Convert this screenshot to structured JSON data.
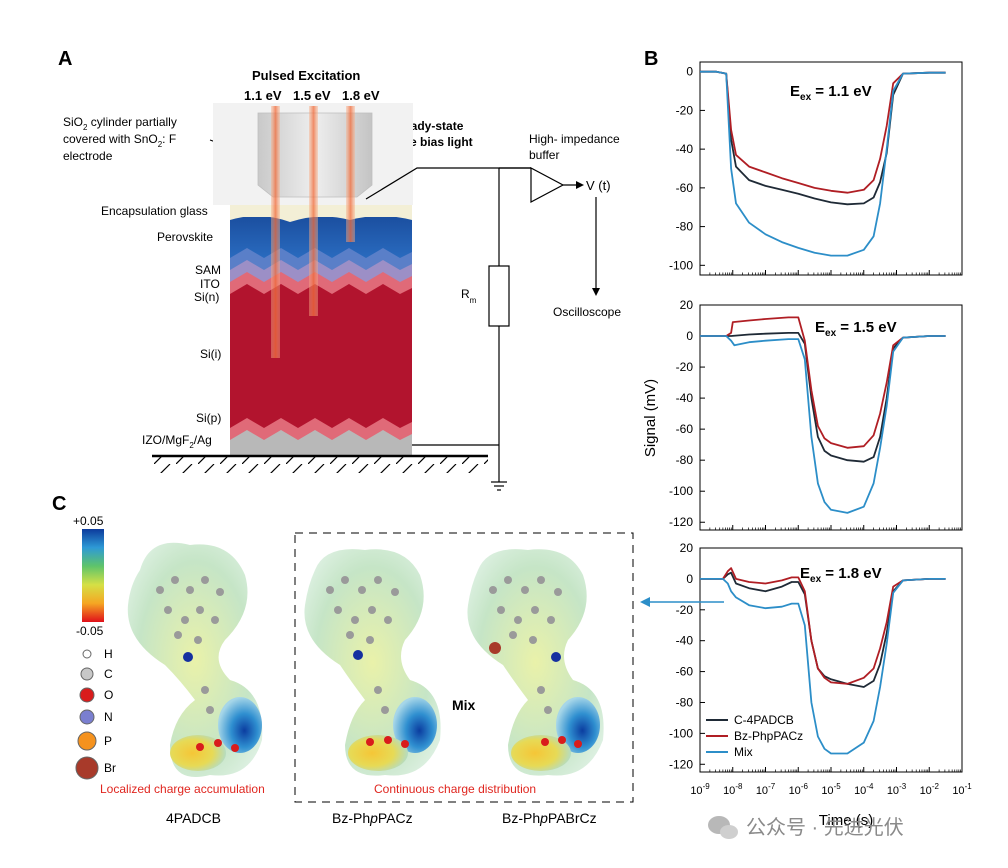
{
  "panels": {
    "a_label": "A",
    "b_label": "B",
    "c_label": "C"
  },
  "panel_a": {
    "pulsed_excitation": "Pulsed Excitation",
    "energies": [
      "1.1 eV",
      "1.5 eV",
      "1.8 eV"
    ],
    "cylinder_label_1": "SiO",
    "cylinder_label_1b": "2",
    "cylinder_label_1c": " cylinder partially",
    "cylinder_label_2": "covered with SnO",
    "cylinder_label_2b": "2",
    "cylinder_label_2c": ": F",
    "cylinder_label_3": "electrode",
    "bias_light_1": "Steady-state",
    "bias_light_2": "white bias light",
    "buffer_1": "High- impedance",
    "buffer_2": "buffer",
    "vt": "V (t)",
    "rm": "R",
    "rm_sub": "m",
    "oscilloscope": "Oscilloscope",
    "layers": {
      "encapsulation": "Encapsulation glass",
      "perovskite": "Perovskite",
      "sam": "SAM",
      "ito": "ITO",
      "si_n": "Si(n)",
      "si_i": "Si(i)",
      "si_p": "Si(p)",
      "bottom": "IZO/MgF",
      "bottom_sub": "2",
      "bottom_end": "/Ag"
    }
  },
  "panel_c": {
    "scale_max": "+0.05",
    "scale_min": "-0.05",
    "atoms": [
      "H",
      "C",
      "O",
      "N",
      "P",
      "Br"
    ],
    "atom_colors": [
      "#ffffff",
      "#c8c8c8",
      "#d91c1c",
      "#7a7fd0",
      "#f5921e",
      "#a83a2a"
    ],
    "localized": "Localized charge accumulation",
    "continuous": "Continuous charge distribution",
    "mix": "Mix",
    "names": [
      "4PADCB",
      "Bz-Ph",
      "p",
      "PACz",
      "Bz-Ph",
      "p",
      "PABrCz"
    ]
  },
  "chart_data": [
    {
      "type": "line",
      "title": "E",
      "title_sub": "ex",
      "title_end": "= 1.1 eV",
      "ylim": [
        -105,
        5
      ],
      "yticks": [
        0,
        -20,
        -40,
        -60,
        -80,
        -100
      ],
      "xscale": "log",
      "xlim_exp": [
        -9,
        -1
      ],
      "series": [
        {
          "name": "C-4PADCB",
          "color": "#1f2a36",
          "x_exp": [
            -9,
            -8.5,
            -8.2,
            -8.05,
            -7.9,
            -7.5,
            -7,
            -6.5,
            -6,
            -5.5,
            -5,
            -4.5,
            -4,
            -3.7,
            -3.5,
            -3.3,
            -3.1,
            -2.8,
            -2,
            -1.5
          ],
          "values": [
            0,
            0,
            -1,
            -35,
            -49,
            -56,
            -59,
            -61,
            -63,
            -65.5,
            -67.5,
            -68.5,
            -68,
            -65,
            -57,
            -42,
            -12,
            -1,
            -0.5,
            -0.5
          ]
        },
        {
          "name": "Bz-PhpPACz",
          "color": "#b01e24",
          "x_exp": [
            -9,
            -8.5,
            -8.2,
            -8.05,
            -7.9,
            -7.5,
            -7,
            -6.5,
            -6,
            -5.5,
            -5,
            -4.5,
            -4,
            -3.7,
            -3.5,
            -3.3,
            -3.1,
            -2.8,
            -2,
            -1.5
          ],
          "values": [
            0,
            0,
            -1,
            -30,
            -43,
            -49,
            -52,
            -55,
            -57.5,
            -60,
            -61.5,
            -62.5,
            -61,
            -56,
            -45,
            -28,
            -6,
            -1,
            -0.5,
            -0.5
          ]
        },
        {
          "name": "Mix",
          "color": "#2c8ec8",
          "x_exp": [
            -9,
            -8.5,
            -8.2,
            -8.05,
            -7.9,
            -7.5,
            -7,
            -6.5,
            -6,
            -5.5,
            -5,
            -4.5,
            -4,
            -3.7,
            -3.5,
            -3.3,
            -3.1,
            -2.8,
            -2,
            -1.5
          ],
          "values": [
            0,
            0,
            -1,
            -50,
            -68,
            -78,
            -84,
            -88,
            -91,
            -93.5,
            -95,
            -95,
            -92,
            -85,
            -68,
            -40,
            -10,
            -1,
            -0.5,
            -0.5
          ]
        }
      ]
    },
    {
      "type": "line",
      "title": "E",
      "title_sub": "ex",
      "title_end": "= 1.5 eV",
      "ylim": [
        -125,
        20
      ],
      "yticks": [
        20,
        0,
        -20,
        -40,
        -60,
        -80,
        -100,
        -120
      ],
      "ylabel": "Signal (mV)",
      "xscale": "log",
      "xlim_exp": [
        -9,
        -1
      ],
      "series": [
        {
          "name": "C-4PADCB",
          "color": "#1f2a36",
          "x_exp": [
            -9,
            -8.2,
            -8.05,
            -7.5,
            -7,
            -6.3,
            -6,
            -5.8,
            -5.6,
            -5.4,
            -5.2,
            -5,
            -4.5,
            -4,
            -3.7,
            -3.5,
            -3.3,
            -3.1,
            -2.8,
            -2,
            -1.5
          ],
          "values": [
            0,
            0,
            0,
            1,
            1.5,
            2,
            2,
            -5,
            -40,
            -65,
            -74,
            -77,
            -80,
            -81,
            -78,
            -65,
            -40,
            -8,
            -1,
            0,
            0
          ]
        },
        {
          "name": "Bz-PhpPACz",
          "color": "#b01e24",
          "x_exp": [
            -9,
            -8.2,
            -8.05,
            -8,
            -7.5,
            -7,
            -6.3,
            -6.1,
            -6,
            -5.8,
            -5.6,
            -5.4,
            -5.2,
            -5,
            -4.5,
            -4,
            -3.7,
            -3.5,
            -3.3,
            -3.1,
            -2.8,
            -2,
            -1.5
          ],
          "values": [
            0,
            0,
            2,
            9,
            10,
            11,
            12,
            12,
            12,
            -3,
            -35,
            -58,
            -66,
            -69,
            -72,
            -71,
            -64,
            -50,
            -30,
            -6,
            -1,
            0,
            0
          ]
        },
        {
          "name": "Mix",
          "color": "#2c8ec8",
          "x_exp": [
            -9,
            -8.2,
            -8.05,
            -7.95,
            -7.5,
            -7,
            -6.3,
            -6,
            -5.8,
            -5.6,
            -5.4,
            -5.2,
            -5,
            -4.5,
            -4,
            -3.7,
            -3.5,
            -3.3,
            -3.1,
            -2.8,
            -2,
            -1.5
          ],
          "values": [
            0,
            0,
            -3,
            -6,
            -4,
            -3,
            -2,
            -2,
            -15,
            -65,
            -95,
            -107,
            -112,
            -114,
            -110,
            -95,
            -72,
            -45,
            -10,
            -1,
            0,
            0
          ]
        }
      ]
    },
    {
      "type": "line",
      "title": "E",
      "title_sub": "ex",
      "title_end": "= 1.8 eV",
      "ylim": [
        -125,
        20
      ],
      "yticks": [
        20,
        0,
        -20,
        -40,
        -60,
        -80,
        -100,
        -120
      ],
      "xscale": "log",
      "xlim_exp": [
        -9,
        -1
      ],
      "xticks_exp": [
        -9,
        -8,
        -7,
        -6,
        -5,
        -4,
        -3,
        -2,
        -1
      ],
      "xlabel": "Time (s)",
      "legend_position": "bottom-left",
      "series": [
        {
          "name": "C-4PADCB",
          "color": "#1f2a36",
          "x_exp": [
            -9,
            -8.3,
            -8.15,
            -8.05,
            -7.9,
            -7.5,
            -7,
            -6.5,
            -6.2,
            -6,
            -5.8,
            -5.6,
            -5.4,
            -5.2,
            -5,
            -4.5,
            -4,
            -3.7,
            -3.5,
            -3.3,
            -3.1,
            -2.8,
            -2,
            -1.5
          ],
          "values": [
            0,
            0,
            3,
            4,
            -3,
            -6,
            -8,
            -5,
            -2,
            -2,
            -10,
            -40,
            -58,
            -63,
            -65,
            -68,
            -70,
            -66,
            -55,
            -35,
            -8,
            -1,
            0,
            0
          ]
        },
        {
          "name": "Bz-PhpPACz",
          "color": "#b01e24",
          "x_exp": [
            -9,
            -8.3,
            -8.15,
            -8.05,
            -7.9,
            -7.5,
            -7,
            -6.5,
            -6.2,
            -6,
            -5.8,
            -5.6,
            -5.4,
            -5.2,
            -5,
            -4.5,
            -4,
            -3.7,
            -3.5,
            -3.3,
            -3.1,
            -2.8,
            -2,
            -1.5
          ],
          "values": [
            0,
            0,
            5,
            7,
            0,
            -2,
            -3,
            -1,
            1,
            1,
            -8,
            -40,
            -58,
            -64,
            -67,
            -68,
            -64,
            -58,
            -45,
            -28,
            -5,
            -1,
            0,
            0
          ]
        },
        {
          "name": "Mix",
          "color": "#2c8ec8",
          "x_exp": [
            -9,
            -8.3,
            -8.15,
            -8.05,
            -7.9,
            -7.5,
            -7,
            -6.5,
            -6.2,
            -6,
            -5.8,
            -5.6,
            -5.4,
            -5.2,
            -5,
            -4.5,
            -4,
            -3.7,
            -3.5,
            -3.3,
            -3.1,
            -2.8,
            -2,
            -1.5
          ],
          "values": [
            0,
            0,
            -3,
            -8,
            -12,
            -17,
            -19,
            -18,
            -16,
            -16,
            -30,
            -80,
            -102,
            -110,
            -113,
            -113,
            -106,
            -92,
            -70,
            -42,
            -9,
            -1,
            0,
            0
          ]
        }
      ]
    }
  ],
  "watermark": "公众号 · 先进光伏"
}
